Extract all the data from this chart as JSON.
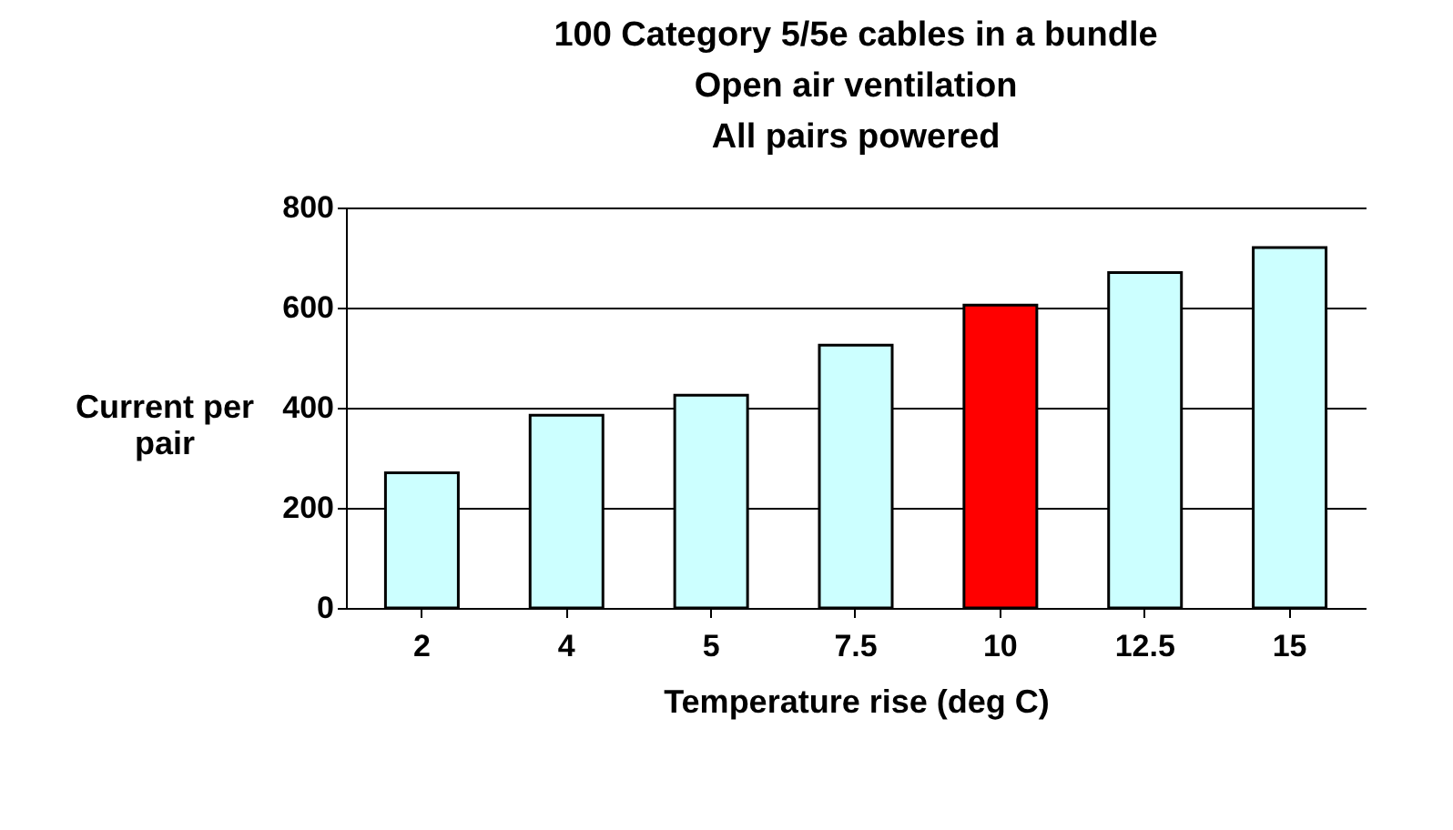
{
  "chart_data": {
    "type": "bar",
    "title": "100 Category 5/5e cables in a bundle",
    "subtitle": "Open air ventilation\nAll pairs powered",
    "xlabel": "Temperature rise (deg C)",
    "ylabel": "Current per pair",
    "categories": [
      "2",
      "4",
      "5",
      "7.5",
      "10",
      "12.5",
      "15"
    ],
    "values": [
      270,
      385,
      425,
      525,
      605,
      670,
      720
    ],
    "colors": [
      "#ccffff",
      "#ccffff",
      "#ccffff",
      "#ccffff",
      "#ff0000",
      "#ccffff",
      "#ccffff"
    ],
    "ylim": [
      0,
      800
    ],
    "yticks": [
      0,
      200,
      400,
      600,
      800
    ],
    "grid": "y"
  }
}
